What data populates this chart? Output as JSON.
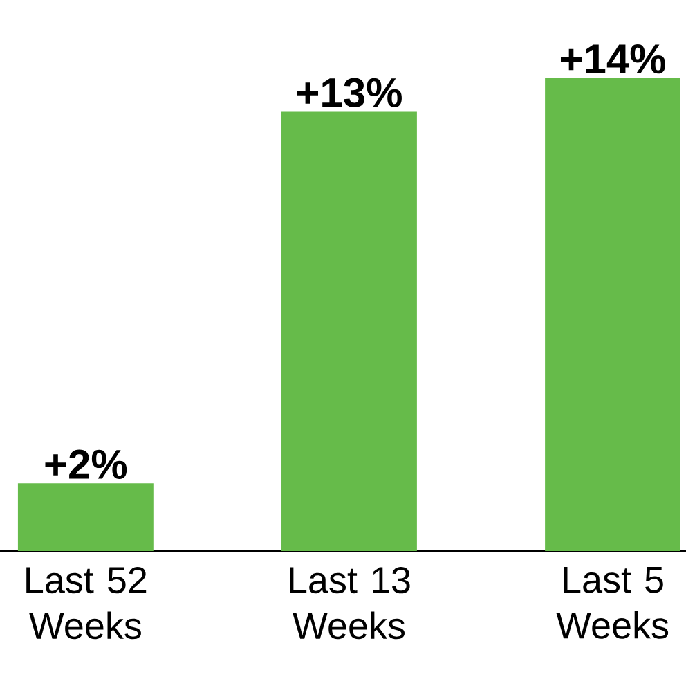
{
  "chart_data": {
    "type": "bar",
    "categories": [
      "Last 52 Weeks",
      "Last 13 Weeks",
      "Last 5 Weeks"
    ],
    "values": [
      2,
      13,
      14
    ],
    "value_labels": [
      "+2%",
      "+13%",
      "+14%"
    ],
    "color": "#66bb4a"
  }
}
